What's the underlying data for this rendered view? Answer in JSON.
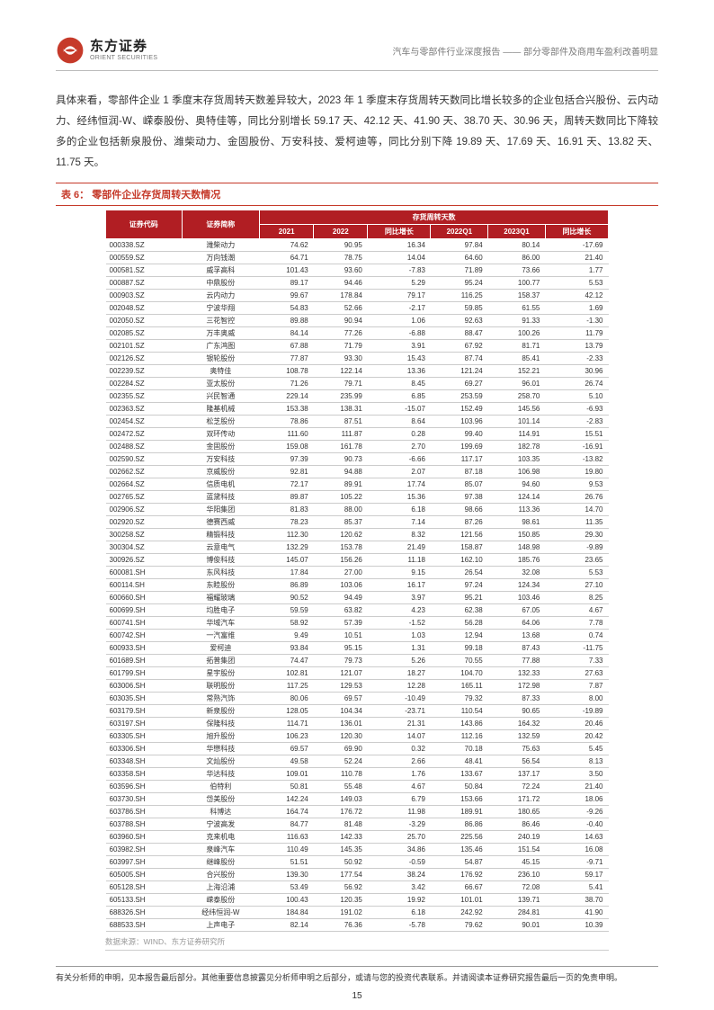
{
  "header": {
    "logo_cn": "东方证券",
    "logo_en": "ORIENT SECURITIES",
    "right_text": "汽车与零部件行业深度报告 —— 部分零部件及商用车盈利改善明显"
  },
  "paragraph": "具体来看，零部件企业 1 季度末存货周转天数差异较大，2023 年 1 季度末存货周转天数同比增长较多的企业包括合兴股份、云内动力、经纬恒润-W、嵘泰股份、奥特佳等，同比分别增长 59.17 天、42.12 天、41.90 天、38.70 天、30.96 天，周转天数同比下降较多的企业包括新泉股份、潍柴动力、金固股份、万安科技、爱柯迪等，同比分别下降 19.89 天、17.69 天、16.91 天、13.82 天、11.75 天。",
  "table_caption_prefix": "表 6：",
  "table_caption_title": "零部件企业存货周转天数情况",
  "table": {
    "group_header": "存货周转天数",
    "cols": [
      "证券代码",
      "证券简称",
      "2021",
      "2022",
      "同比增长",
      "2022Q1",
      "2023Q1",
      "同比增长"
    ],
    "rows": [
      [
        "000338.SZ",
        "潍柴动力",
        "74.62",
        "90.95",
        "16.34",
        "97.84",
        "80.14",
        "-17.69"
      ],
      [
        "000559.SZ",
        "万向钱潮",
        "64.71",
        "78.75",
        "14.04",
        "64.60",
        "86.00",
        "21.40"
      ],
      [
        "000581.SZ",
        "威孚高科",
        "101.43",
        "93.60",
        "-7.83",
        "71.89",
        "73.66",
        "1.77"
      ],
      [
        "000887.SZ",
        "中鼎股份",
        "89.17",
        "94.46",
        "5.29",
        "95.24",
        "100.77",
        "5.53"
      ],
      [
        "000903.SZ",
        "云内动力",
        "99.67",
        "178.84",
        "79.17",
        "116.25",
        "158.37",
        "42.12"
      ],
      [
        "002048.SZ",
        "宁波华翔",
        "54.83",
        "52.66",
        "-2.17",
        "59.85",
        "61.55",
        "1.69"
      ],
      [
        "002050.SZ",
        "三花智控",
        "89.88",
        "90.94",
        "1.06",
        "92.63",
        "91.33",
        "-1.30"
      ],
      [
        "002085.SZ",
        "万丰奥威",
        "84.14",
        "77.26",
        "-6.88",
        "88.47",
        "100.26",
        "11.79"
      ],
      [
        "002101.SZ",
        "广东鸿图",
        "67.88",
        "71.79",
        "3.91",
        "67.92",
        "81.71",
        "13.79"
      ],
      [
        "002126.SZ",
        "银轮股份",
        "77.87",
        "93.30",
        "15.43",
        "87.74",
        "85.41",
        "-2.33"
      ],
      [
        "002239.SZ",
        "奥特佳",
        "108.78",
        "122.14",
        "13.36",
        "121.24",
        "152.21",
        "30.96"
      ],
      [
        "002284.SZ",
        "亚太股份",
        "71.26",
        "79.71",
        "8.45",
        "69.27",
        "96.01",
        "26.74"
      ],
      [
        "002355.SZ",
        "兴民智通",
        "229.14",
        "235.99",
        "6.85",
        "253.59",
        "258.70",
        "5.10"
      ],
      [
        "002363.SZ",
        "隆基机械",
        "153.38",
        "138.31",
        "-15.07",
        "152.49",
        "145.56",
        "-6.93"
      ],
      [
        "002454.SZ",
        "松芝股份",
        "78.86",
        "87.51",
        "8.64",
        "103.96",
        "101.14",
        "-2.83"
      ],
      [
        "002472.SZ",
        "双环传动",
        "111.60",
        "111.87",
        "0.28",
        "99.40",
        "114.91",
        "15.51"
      ],
      [
        "002488.SZ",
        "金固股份",
        "159.08",
        "161.78",
        "2.70",
        "199.69",
        "182.78",
        "-16.91"
      ],
      [
        "002590.SZ",
        "万安科技",
        "97.39",
        "90.73",
        "-6.66",
        "117.17",
        "103.35",
        "-13.82"
      ],
      [
        "002662.SZ",
        "京威股份",
        "92.81",
        "94.88",
        "2.07",
        "87.18",
        "106.98",
        "19.80"
      ],
      [
        "002664.SZ",
        "信质电机",
        "72.17",
        "89.91",
        "17.74",
        "85.07",
        "94.60",
        "9.53"
      ],
      [
        "002765.SZ",
        "蓝黛科技",
        "89.87",
        "105.22",
        "15.36",
        "97.38",
        "124.14",
        "26.76"
      ],
      [
        "002906.SZ",
        "华阳集团",
        "81.83",
        "88.00",
        "6.18",
        "98.66",
        "113.36",
        "14.70"
      ],
      [
        "002920.SZ",
        "德赛西威",
        "78.23",
        "85.37",
        "7.14",
        "87.26",
        "98.61",
        "11.35"
      ],
      [
        "300258.SZ",
        "精锻科技",
        "112.30",
        "120.62",
        "8.32",
        "121.56",
        "150.85",
        "29.30"
      ],
      [
        "300304.SZ",
        "云意电气",
        "132.29",
        "153.78",
        "21.49",
        "158.87",
        "148.98",
        "-9.89"
      ],
      [
        "300926.SZ",
        "博俊科技",
        "145.07",
        "156.26",
        "11.18",
        "162.10",
        "185.76",
        "23.65"
      ],
      [
        "600081.SH",
        "东风科技",
        "17.84",
        "27.00",
        "9.15",
        "26.54",
        "32.08",
        "5.53"
      ],
      [
        "600114.SH",
        "东睦股份",
        "86.89",
        "103.06",
        "16.17",
        "97.24",
        "124.34",
        "27.10"
      ],
      [
        "600660.SH",
        "福耀玻璃",
        "90.52",
        "94.49",
        "3.97",
        "95.21",
        "103.46",
        "8.25"
      ],
      [
        "600699.SH",
        "均胜电子",
        "59.59",
        "63.82",
        "4.23",
        "62.38",
        "67.05",
        "4.67"
      ],
      [
        "600741.SH",
        "华域汽车",
        "58.92",
        "57.39",
        "-1.52",
        "56.28",
        "64.06",
        "7.78"
      ],
      [
        "600742.SH",
        "一汽富维",
        "9.49",
        "10.51",
        "1.03",
        "12.94",
        "13.68",
        "0.74"
      ],
      [
        "600933.SH",
        "爱柯迪",
        "93.84",
        "95.15",
        "1.31",
        "99.18",
        "87.43",
        "-11.75"
      ],
      [
        "601689.SH",
        "拓普集团",
        "74.47",
        "79.73",
        "5.26",
        "70.55",
        "77.88",
        "7.33"
      ],
      [
        "601799.SH",
        "星宇股份",
        "102.81",
        "121.07",
        "18.27",
        "104.70",
        "132.33",
        "27.63"
      ],
      [
        "603006.SH",
        "联明股份",
        "117.25",
        "129.53",
        "12.28",
        "165.11",
        "172.98",
        "7.87"
      ],
      [
        "603035.SH",
        "常熟汽饰",
        "80.06",
        "69.57",
        "-10.49",
        "79.32",
        "87.33",
        "8.00"
      ],
      [
        "603179.SH",
        "新泉股份",
        "128.05",
        "104.34",
        "-23.71",
        "110.54",
        "90.65",
        "-19.89"
      ],
      [
        "603197.SH",
        "保隆科技",
        "114.71",
        "136.01",
        "21.31",
        "143.86",
        "164.32",
        "20.46"
      ],
      [
        "603305.SH",
        "旭升股份",
        "106.23",
        "120.30",
        "14.07",
        "112.16",
        "132.59",
        "20.42"
      ],
      [
        "603306.SH",
        "华懋科技",
        "69.57",
        "69.90",
        "0.32",
        "70.18",
        "75.63",
        "5.45"
      ],
      [
        "603348.SH",
        "文灿股份",
        "49.58",
        "52.24",
        "2.66",
        "48.41",
        "56.54",
        "8.13"
      ],
      [
        "603358.SH",
        "华达科技",
        "109.01",
        "110.78",
        "1.76",
        "133.67",
        "137.17",
        "3.50"
      ],
      [
        "603596.SH",
        "伯特利",
        "50.81",
        "55.48",
        "4.67",
        "50.84",
        "72.24",
        "21.40"
      ],
      [
        "603730.SH",
        "岱美股份",
        "142.24",
        "149.03",
        "6.79",
        "153.66",
        "171.72",
        "18.06"
      ],
      [
        "603786.SH",
        "科博达",
        "164.74",
        "176.72",
        "11.98",
        "189.91",
        "180.65",
        "-9.26"
      ],
      [
        "603788.SH",
        "宁波高发",
        "84.77",
        "81.48",
        "-3.29",
        "86.86",
        "86.46",
        "-0.40"
      ],
      [
        "603960.SH",
        "克来机电",
        "116.63",
        "142.33",
        "25.70",
        "225.56",
        "240.19",
        "14.63"
      ],
      [
        "603982.SH",
        "泉峰汽车",
        "110.49",
        "145.35",
        "34.86",
        "135.46",
        "151.54",
        "16.08"
      ],
      [
        "603997.SH",
        "继峰股份",
        "51.51",
        "50.92",
        "-0.59",
        "54.87",
        "45.15",
        "-9.71"
      ],
      [
        "605005.SH",
        "合兴股份",
        "139.30",
        "177.54",
        "38.24",
        "176.92",
        "236.10",
        "59.17"
      ],
      [
        "605128.SH",
        "上海沿浦",
        "53.49",
        "56.92",
        "3.42",
        "66.67",
        "72.08",
        "5.41"
      ],
      [
        "605133.SH",
        "嵘泰股份",
        "100.43",
        "120.35",
        "19.92",
        "101.01",
        "139.71",
        "38.70"
      ],
      [
        "688326.SH",
        "经纬恒润-W",
        "184.84",
        "191.02",
        "6.18",
        "242.92",
        "284.81",
        "41.90"
      ],
      [
        "688533.SH",
        "上声电子",
        "82.14",
        "76.36",
        "-5.78",
        "79.62",
        "90.01",
        "10.39"
      ]
    ]
  },
  "source": "数据来源：WIND、东方证券研究所",
  "footer": "有关分析师的申明，见本报告最后部分。其他重要信息披露见分析师申明之后部分，或请与您的投资代表联系。并请阅读本证券研究报告最后一页的免责申明。",
  "page_no": "15",
  "colors": {
    "brand_red": "#c63a2a",
    "table_header_bg": "#b11e23"
  }
}
